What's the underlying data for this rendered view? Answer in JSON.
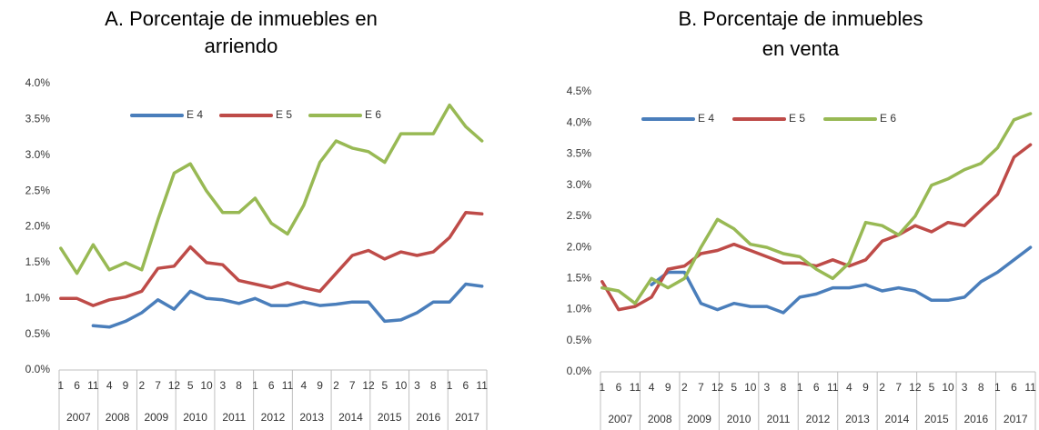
{
  "chart_data": [
    {
      "type": "line",
      "title": [
        "A.  Porcentaje de inmuebles en",
        "arriendo"
      ],
      "categories": [
        "1",
        "6",
        "11",
        "4",
        "9",
        "2",
        "7",
        "12",
        "5",
        "10",
        "3",
        "8",
        "1",
        "6",
        "11",
        "4",
        "9",
        "2",
        "7",
        "12",
        "5",
        "10",
        "3",
        "8",
        "1",
        "6",
        "11"
      ],
      "years": [
        "2007",
        "2008",
        "2009",
        "2010",
        "2011",
        "2012",
        "2013",
        "2014",
        "2015",
        "2016",
        "2017"
      ],
      "ylim": [
        0,
        4.0
      ],
      "yticks": [
        {
          "value": 0,
          "label": "0.0%"
        },
        {
          "value": 0.5,
          "label": "0.5%"
        },
        {
          "value": 1.0,
          "label": "1.0%"
        },
        {
          "value": 1.5,
          "label": "1.5%"
        },
        {
          "value": 2.0,
          "label": "2.0%"
        },
        {
          "value": 2.5,
          "label": "2.5%"
        },
        {
          "value": 3.0,
          "label": "3.0%"
        },
        {
          "value": 3.5,
          "label": "3.5%"
        },
        {
          "value": 4.0,
          "label": "4.0%"
        }
      ],
      "grid": false,
      "legend": "top",
      "series": [
        {
          "name": "E 4",
          "color": "#4a7ebb",
          "values": [
            null,
            null,
            0.62,
            0.6,
            0.68,
            0.8,
            0.98,
            0.85,
            1.1,
            1.0,
            0.98,
            0.93,
            1.0,
            0.9,
            0.9,
            0.95,
            0.9,
            0.92,
            0.95,
            0.95,
            0.68,
            0.7,
            0.8,
            0.95,
            0.95,
            1.2,
            1.17
          ]
        },
        {
          "name": "E 5",
          "color": "#be4b48",
          "values": [
            1.0,
            1.0,
            0.9,
            0.98,
            1.02,
            1.1,
            1.42,
            1.45,
            1.72,
            1.5,
            1.47,
            1.25,
            1.2,
            1.15,
            1.22,
            1.15,
            1.1,
            1.35,
            1.6,
            1.67,
            1.55,
            1.65,
            1.6,
            1.65,
            1.85,
            2.2,
            2.18
          ]
        },
        {
          "name": "E 6",
          "color": "#98b954",
          "values": [
            1.7,
            1.35,
            1.75,
            1.4,
            1.5,
            1.4,
            2.1,
            2.75,
            2.88,
            2.5,
            2.2,
            2.2,
            2.4,
            2.05,
            1.9,
            2.3,
            2.9,
            3.2,
            3.1,
            3.05,
            2.9,
            3.3,
            3.3,
            3.3,
            3.7,
            3.4,
            3.2
          ]
        }
      ]
    },
    {
      "type": "line",
      "title": [
        "B.  Porcentaje de inmuebles",
        "en venta"
      ],
      "categories": [
        "1",
        "6",
        "11",
        "4",
        "9",
        "2",
        "7",
        "12",
        "5",
        "10",
        "3",
        "8",
        "1",
        "6",
        "11",
        "4",
        "9",
        "2",
        "7",
        "12",
        "5",
        "10",
        "3",
        "8",
        "1",
        "6",
        "11"
      ],
      "years": [
        "2007",
        "2008",
        "2009",
        "2010",
        "2011",
        "2012",
        "2013",
        "2014",
        "2015",
        "2016",
        "2017"
      ],
      "ylim": [
        0,
        4.5
      ],
      "yticks": [
        {
          "value": 0,
          "label": "0.0%"
        },
        {
          "value": 0.5,
          "label": "0.5%"
        },
        {
          "value": 1.0,
          "label": "1.0%"
        },
        {
          "value": 1.5,
          "label": "1.5%"
        },
        {
          "value": 2.0,
          "label": "2.0%"
        },
        {
          "value": 2.5,
          "label": "2.5%"
        },
        {
          "value": 3.0,
          "label": "3.0%"
        },
        {
          "value": 3.5,
          "label": "3.5%"
        },
        {
          "value": 4.0,
          "label": "4.0%"
        },
        {
          "value": 4.5,
          "label": "4.5%"
        }
      ],
      "grid": false,
      "legend": "top",
      "series": [
        {
          "name": "E 4",
          "color": "#4a7ebb",
          "values": [
            null,
            null,
            null,
            1.4,
            1.6,
            1.6,
            1.1,
            1.0,
            1.1,
            1.05,
            1.05,
            0.95,
            1.2,
            1.25,
            1.35,
            1.35,
            1.4,
            1.3,
            1.35,
            1.3,
            1.15,
            1.15,
            1.2,
            1.45,
            1.6,
            1.8,
            2.0
          ]
        },
        {
          "name": "E 5",
          "color": "#be4b48",
          "values": [
            1.45,
            1.0,
            1.05,
            1.2,
            1.65,
            1.7,
            1.9,
            1.95,
            2.05,
            1.95,
            1.85,
            1.75,
            1.75,
            1.7,
            1.8,
            1.7,
            1.8,
            2.1,
            2.2,
            2.35,
            2.25,
            2.4,
            2.35,
            2.6,
            2.85,
            3.45,
            3.65
          ]
        },
        {
          "name": "E 6",
          "color": "#98b954",
          "values": [
            1.35,
            1.3,
            1.1,
            1.5,
            1.35,
            1.5,
            2.0,
            2.45,
            2.3,
            2.05,
            2.0,
            1.9,
            1.85,
            1.65,
            1.5,
            1.75,
            2.4,
            2.35,
            2.2,
            2.5,
            3.0,
            3.1,
            3.25,
            3.35,
            3.6,
            4.05,
            4.15
          ]
        }
      ]
    }
  ]
}
